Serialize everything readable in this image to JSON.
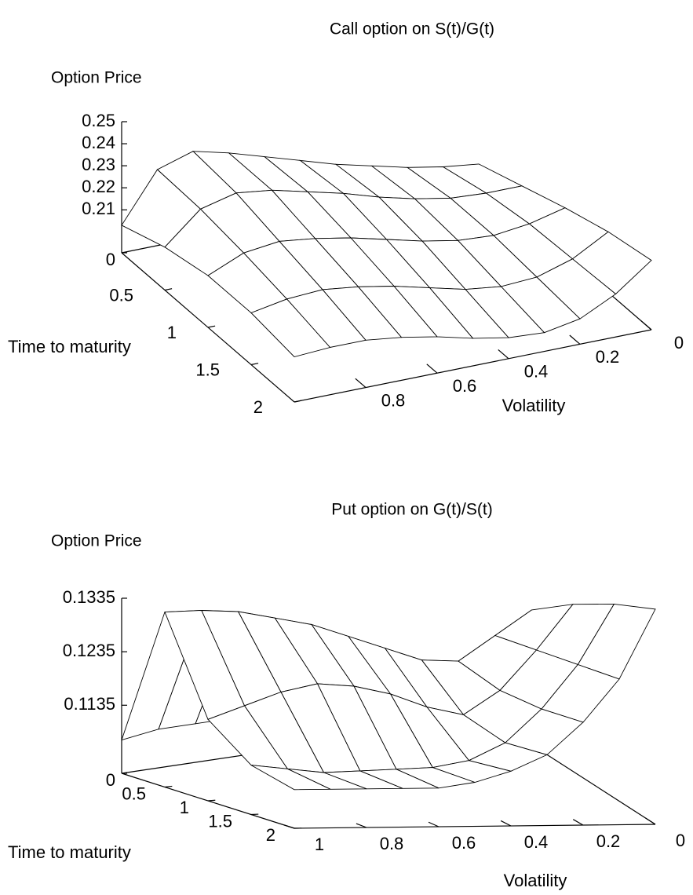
{
  "chart_data": [
    {
      "type": "surface",
      "title": "Call option on S(t)/G(t)",
      "zlabel": "Option Price",
      "xlabel": "Time to maturity",
      "ylabel": "Volatility",
      "x": [
        0,
        0.5,
        1,
        1.5,
        2
      ],
      "y": [
        0,
        0.1,
        0.2,
        0.3,
        0.4,
        0.5,
        0.6,
        0.7,
        0.8,
        0.9,
        1
      ],
      "values": [
        [
          0.198,
          0.2,
          0.203,
          0.207,
          0.211,
          0.216,
          0.221,
          0.226,
          0.23,
          0.225,
          0.203
        ],
        [
          0.205,
          0.205,
          0.206,
          0.209,
          0.213,
          0.218,
          0.222,
          0.226,
          0.228,
          0.224,
          0.21
        ],
        [
          0.212,
          0.208,
          0.206,
          0.207,
          0.21,
          0.214,
          0.218,
          0.221,
          0.223,
          0.221,
          0.214
        ],
        [
          0.218,
          0.209,
          0.204,
          0.203,
          0.205,
          0.209,
          0.213,
          0.216,
          0.218,
          0.217,
          0.214
        ],
        [
          0.222,
          0.21,
          0.202,
          0.199,
          0.2,
          0.203,
          0.207,
          0.21,
          0.212,
          0.212,
          0.211
        ]
      ],
      "xlim": [
        0,
        2
      ],
      "ylim": [
        0,
        1
      ],
      "zlim": [
        0.2,
        0.25
      ],
      "ticslevel": 0.19,
      "xticks": [
        0.5,
        1,
        1.5,
        2
      ],
      "yticks": [
        0,
        0.2,
        0.4,
        0.6,
        0.8
      ],
      "zticks": [
        0,
        0.21,
        0.22,
        0.23,
        0.24,
        0.25
      ],
      "hidden3d": true
    },
    {
      "type": "surface",
      "title": "Put option on G(t)/S(t)",
      "zlabel": "Option Price",
      "xlabel": "Time to maturity",
      "ylabel": "Volatility",
      "x": [
        0,
        0.5,
        1,
        1.5,
        2
      ],
      "y": [
        0,
        0.1,
        0.2,
        0.3,
        0.4,
        0.5,
        0.6,
        0.7,
        0.8,
        0.9,
        1
      ],
      "values": [
        [
          0.11,
          0.11,
          0.109,
          0.109,
          0.108,
          0.108,
          0.108,
          0.108,
          0.108,
          0.108,
          0.107
        ],
        [
          0.126,
          0.122,
          0.118,
          0.119,
          0.122,
          0.125,
          0.128,
          0.13,
          0.132,
          0.133,
          0.1335
        ],
        [
          0.132,
          0.124,
          0.117,
          0.113,
          0.115,
          0.118,
          0.12,
          0.121,
          0.12,
          0.118,
          0.116
        ],
        [
          0.137,
          0.126,
          0.118,
          0.112,
          0.109,
          0.108,
          0.108,
          0.108,
          0.108,
          0.109,
          0.11
        ],
        [
          0.141,
          0.128,
          0.12,
          0.114,
          0.111,
          0.109,
          0.108,
          0.108,
          0.108,
          0.108,
          0.108
        ]
      ],
      "xlim": [
        0,
        2
      ],
      "ylim": [
        0,
        1
      ],
      "zlim": [
        0.106,
        0.1335
      ],
      "ticslevel": 0.19,
      "xticks": [
        0.5,
        1,
        1.5,
        2
      ],
      "yticks": [
        0,
        0.2,
        0.4,
        0.6,
        0.8,
        1
      ],
      "zticks": [
        0,
        0.1135,
        0.1235,
        0.1335
      ],
      "hidden3d": true
    }
  ]
}
